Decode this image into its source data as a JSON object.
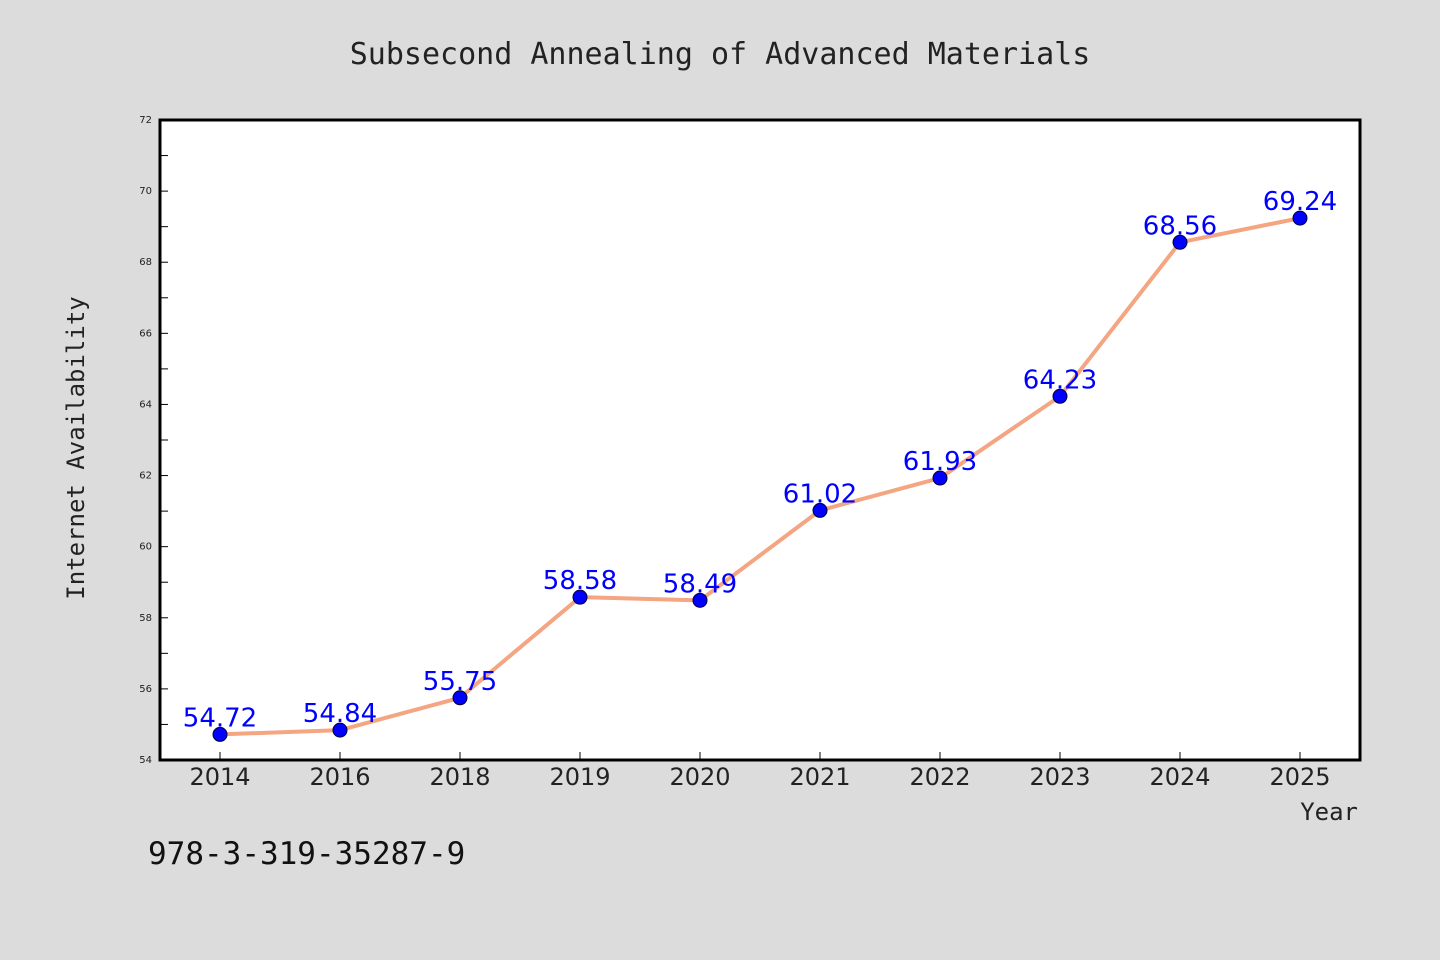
{
  "chart_data": {
    "type": "line",
    "title": "Subsecond Annealing of Advanced Materials",
    "xlabel": "Year",
    "ylabel": "Internet Availability",
    "categories": [
      "2014",
      "2016",
      "2018",
      "2019",
      "2020",
      "2021",
      "2022",
      "2023",
      "2024",
      "2025"
    ],
    "values": [
      54.72,
      54.84,
      55.75,
      58.58,
      58.49,
      61.02,
      61.93,
      64.23,
      68.56,
      69.24
    ],
    "data_labels": [
      "54.72",
      "54.84",
      "55.75",
      "58.58",
      "58.49",
      "61.02",
      "61.93",
      "64.23",
      "68.56",
      "69.24"
    ],
    "ylim": [
      54,
      72
    ],
    "yticks": [
      "54",
      "56",
      "58",
      "60",
      "62",
      "64",
      "66",
      "68",
      "70",
      "72"
    ],
    "grid": false,
    "legend": "none",
    "colors": {
      "line": "#f4a582",
      "marker": "#0000ff",
      "label": "#0000ff",
      "background": "#dcdcdc",
      "plot_background": "#ffffff"
    }
  },
  "footer": {
    "isbn": "978-3-319-35287-9"
  }
}
